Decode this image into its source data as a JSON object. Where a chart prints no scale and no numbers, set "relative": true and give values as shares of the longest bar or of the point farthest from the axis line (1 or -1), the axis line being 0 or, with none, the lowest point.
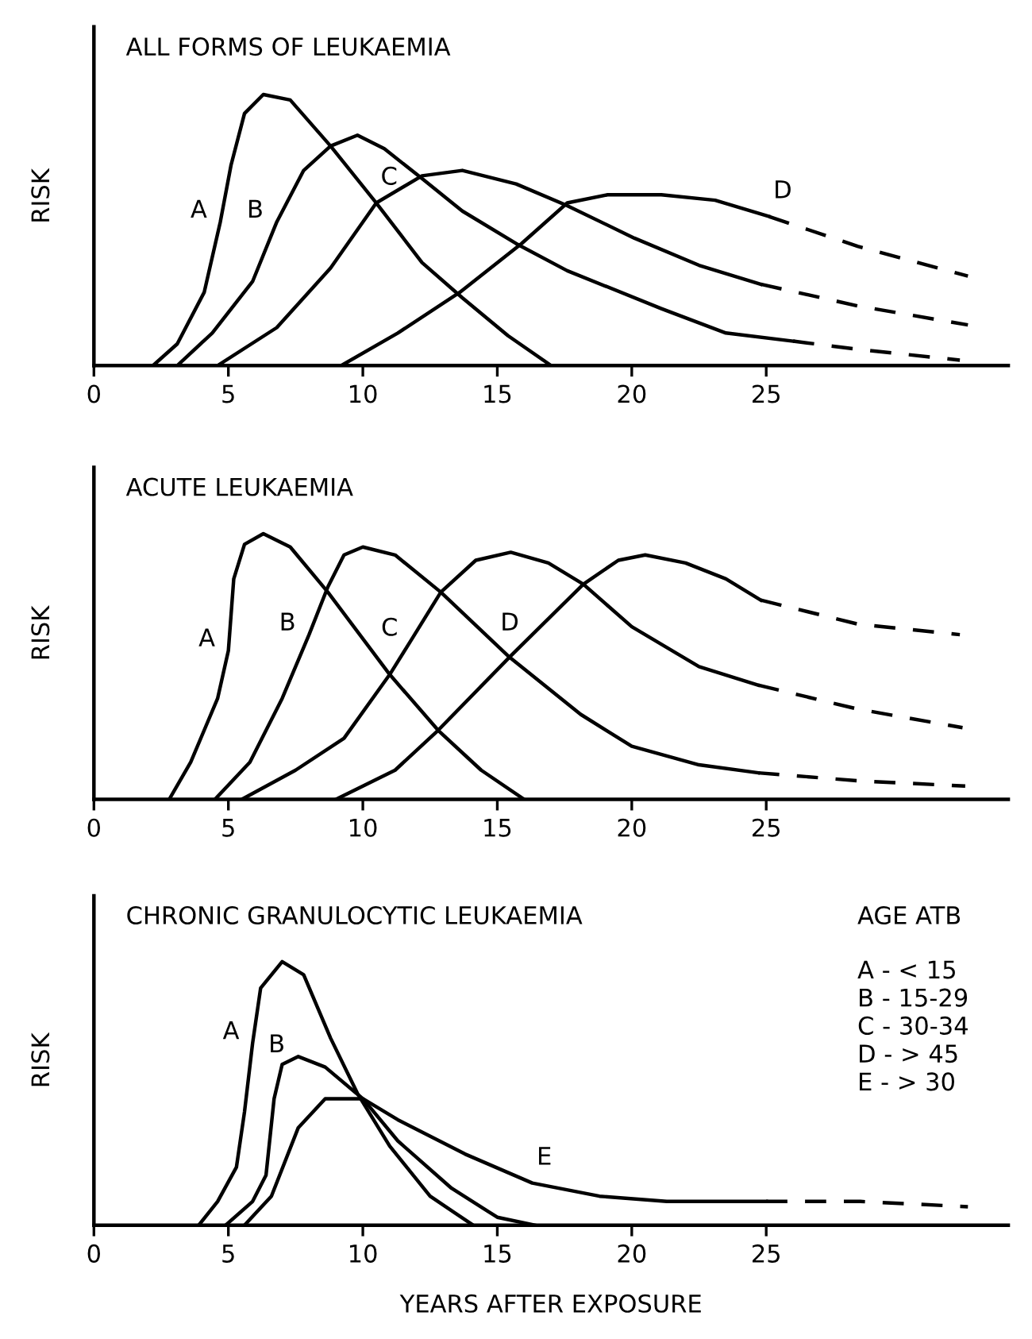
{
  "chart_data": [
    {
      "type": "line",
      "title": "ALL FORMS OF LEUKAEMIA",
      "ylabel": "RISK",
      "relative": true,
      "xlim": [
        0,
        34
      ],
      "xticks": [
        0,
        5,
        10,
        15,
        20,
        25
      ],
      "tick_labels": "x",
      "grid": false,
      "legend": false,
      "marker": "none",
      "series": [
        {
          "color": "#000000",
          "x": [
            2.2,
            3.1,
            4.1,
            4.7,
            5.1,
            5.6,
            6.3,
            7.3,
            8.8,
            10.5,
            12.2,
            13.7,
            15.4,
            17.0
          ],
          "values": [
            0,
            0.08,
            0.27,
            0.53,
            0.74,
            0.93,
            1.0,
            0.98,
            0.81,
            0.6,
            0.38,
            0.25,
            0.11,
            0
          ]
        },
        {
          "color": "#000000",
          "x": [
            3.1,
            4.4,
            5.9,
            6.8,
            7.8,
            8.8,
            9.8,
            10.8,
            12.2,
            13.7,
            15.7,
            17.6,
            21.1,
            23.5,
            26.0
          ],
          "values": [
            0,
            0.12,
            0.31,
            0.53,
            0.72,
            0.81,
            0.85,
            0.8,
            0.69,
            0.57,
            0.45,
            0.35,
            0.21,
            0.12,
            0.09
          ]
        },
        {
          "color": "#000000",
          "line_style": "dashed",
          "x": [
            26.0,
            28.4,
            32.2
          ],
          "values": [
            0.09,
            0.06,
            0.02
          ]
        },
        {
          "color": "#000000",
          "x": [
            4.6,
            6.8,
            8.8,
            10.5,
            12.2,
            13.7,
            15.7,
            17.6,
            20.1,
            22.5,
            24.8
          ],
          "values": [
            0,
            0.14,
            0.36,
            0.6,
            0.7,
            0.72,
            0.67,
            0.59,
            0.47,
            0.37,
            0.3
          ]
        },
        {
          "color": "#000000",
          "line_style": "dashed",
          "x": [
            24.8,
            28.4,
            32.5
          ],
          "values": [
            0.3,
            0.22,
            0.15
          ]
        },
        {
          "color": "#000000",
          "x": [
            9.2,
            11.3,
            13.6,
            15.9,
            17.6,
            19.1,
            21.1,
            23.1,
            25.1
          ],
          "values": [
            0,
            0.12,
            0.27,
            0.45,
            0.6,
            0.63,
            0.63,
            0.61,
            0.55
          ]
        },
        {
          "color": "#000000",
          "line_style": "dashed",
          "x": [
            25.1,
            28.4,
            32.5
          ],
          "values": [
            0.55,
            0.44,
            0.33
          ]
        }
      ],
      "annotations": [
        {
          "text": "A",
          "x": 4.7,
          "y": 0.53
        },
        {
          "text": "B",
          "x": 6.8,
          "y": 0.53
        },
        {
          "text": "C",
          "x": 10.5,
          "y": 0.6
        },
        {
          "text": "D",
          "x": 25.1,
          "y": 0.55
        }
      ]
    },
    {
      "type": "line",
      "title": "ACUTE LEUKAEMIA",
      "ylabel": "RISK",
      "relative": true,
      "xlim": [
        0,
        34
      ],
      "xticks": [
        0,
        5,
        10,
        15,
        20,
        25
      ],
      "tick_labels": "x",
      "grid": false,
      "legend": false,
      "marker": "none",
      "series": [
        {
          "color": "#000000",
          "x": [
            2.8,
            3.6,
            4.6,
            5.0,
            5.2,
            5.6,
            6.3,
            7.3,
            8.7,
            11.0,
            12.8,
            14.4,
            16.0
          ],
          "values": [
            0,
            0.14,
            0.38,
            0.56,
            0.83,
            0.96,
            1.0,
            0.95,
            0.78,
            0.47,
            0.26,
            0.11,
            0
          ]
        },
        {
          "color": "#000000",
          "x": [
            4.5,
            5.8,
            7.0,
            8.0,
            8.7,
            9.3,
            10.0,
            11.2,
            12.9,
            15.4,
            18.1,
            20.0,
            22.5,
            24.7
          ],
          "values": [
            0,
            0.14,
            0.38,
            0.62,
            0.8,
            0.92,
            0.95,
            0.92,
            0.78,
            0.54,
            0.32,
            0.2,
            0.13,
            0.1
          ]
        },
        {
          "color": "#000000",
          "line_style": "dashed",
          "x": [
            24.7,
            28.4,
            32.4
          ],
          "values": [
            0.1,
            0.07,
            0.05
          ]
        },
        {
          "color": "#000000",
          "x": [
            5.5,
            7.5,
            9.3,
            11.0,
            11.8,
            12.9,
            14.2,
            15.5,
            16.9,
            18.2,
            20.0,
            22.5,
            24.7
          ],
          "values": [
            0,
            0.11,
            0.23,
            0.47,
            0.6,
            0.78,
            0.9,
            0.93,
            0.89,
            0.81,
            0.65,
            0.5,
            0.43
          ]
        },
        {
          "color": "#000000",
          "line_style": "dashed",
          "x": [
            24.7,
            28.4,
            32.3
          ],
          "values": [
            0.43,
            0.34,
            0.27
          ]
        },
        {
          "color": "#000000",
          "x": [
            9.0,
            11.2,
            12.8,
            15.5,
            16.3,
            18.2,
            19.5,
            20.5,
            22.0,
            23.5,
            24.8
          ],
          "values": [
            0,
            0.11,
            0.26,
            0.54,
            0.62,
            0.81,
            0.9,
            0.92,
            0.89,
            0.83,
            0.75
          ]
        },
        {
          "color": "#000000",
          "line_style": "dashed",
          "x": [
            24.8,
            28.4,
            32.2
          ],
          "values": [
            0.75,
            0.66,
            0.62
          ]
        }
      ],
      "annotations": [
        {
          "text": "A",
          "x": 5.0,
          "y": 0.56
        },
        {
          "text": "B",
          "x": 8.0,
          "y": 0.62
        },
        {
          "text": "C",
          "x": 11.8,
          "y": 0.6
        },
        {
          "text": "D",
          "x": 16.3,
          "y": 0.62
        }
      ]
    },
    {
      "type": "line",
      "title": "CHRONIC GRANULOCYTIC LEUKAEMIA",
      "ylabel": "RISK",
      "xlabel": "YEARS AFTER EXPOSURE",
      "relative": true,
      "xlim": [
        0,
        34
      ],
      "xticks": [
        0,
        5,
        10,
        15,
        20,
        25
      ],
      "tick_labels": "x",
      "grid": false,
      "legend": false,
      "marker": "none",
      "series": [
        {
          "color": "#000000",
          "x": [
            3.9,
            4.6,
            5.3,
            5.6,
            5.9,
            6.2,
            7.0,
            7.8,
            8.8,
            9.8,
            11.0,
            12.5,
            14.1
          ],
          "values": [
            0,
            0.09,
            0.22,
            0.43,
            0.69,
            0.9,
            1.0,
            0.95,
            0.71,
            0.5,
            0.3,
            0.11,
            0
          ]
        },
        {
          "color": "#000000",
          "x": [
            4.9,
            5.9,
            6.4,
            6.7,
            7.0,
            7.6,
            8.6,
            10.0,
            11.3,
            13.3,
            15.0,
            16.4
          ],
          "values": [
            0,
            0.09,
            0.19,
            0.48,
            0.61,
            0.64,
            0.6,
            0.48,
            0.32,
            0.14,
            0.03,
            0
          ]
        },
        {
          "color": "#000000",
          "x": [
            5.6,
            6.6,
            7.6,
            8.6,
            9.6,
            10.0,
            11.3,
            13.8,
            16.3,
            18.8,
            21.3,
            25.0
          ],
          "values": [
            0,
            0.11,
            0.37,
            0.48,
            0.48,
            0.48,
            0.4,
            0.27,
            0.16,
            0.11,
            0.09,
            0.09
          ]
        },
        {
          "color": "#000000",
          "line_style": "dashed",
          "x": [
            25.0,
            28.5,
            32.5
          ],
          "values": [
            0.09,
            0.09,
            0.07
          ]
        }
      ],
      "annotations": [
        {
          "text": "A",
          "x": 5.9,
          "y": 0.69
        },
        {
          "text": "B",
          "x": 7.6,
          "y": 0.64
        },
        {
          "text": "E",
          "x": 16.3,
          "y": 0.16
        },
        "AGE ATB",
        "A - < 15",
        "B - 15-29",
        "C - 30-34",
        "D - > 45",
        "E - > 30"
      ]
    }
  ]
}
